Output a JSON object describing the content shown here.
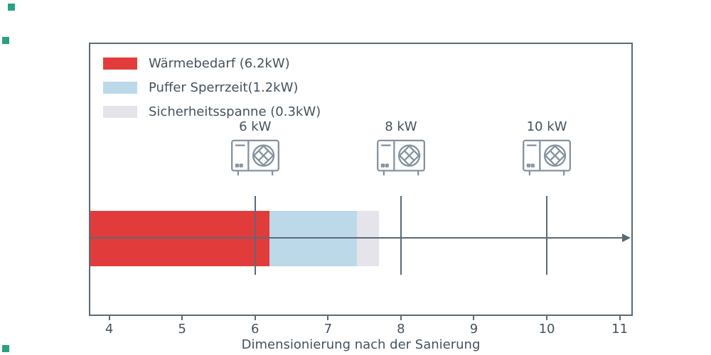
{
  "figure": {
    "background": "#ffffff",
    "frame_color": "#5b6a76",
    "text_color": "#44525e",
    "icon_color": "#8593a0",
    "handle_color": "#2aa184"
  },
  "legend": {
    "items": [
      {
        "label": "Wärmebedarf (6.2kW)",
        "color": "#e23b3b"
      },
      {
        "label": "Puffer Sperrzeit(1.2kW)",
        "color": "#bcd9ea"
      },
      {
        "label": "Sicherheitsspanne (0.3kW)",
        "color": "#e4e4ea"
      }
    ]
  },
  "chart_data": {
    "type": "bar",
    "orientation": "horizontal",
    "title": "",
    "xlabel": "Dimensionierung nach der Sanierung",
    "x_ticks": [
      4,
      5,
      6,
      7,
      8,
      9,
      10,
      11
    ],
    "xlim": [
      3.74,
      11.16
    ],
    "grid": false,
    "legend_position": "upper left",
    "bar": {
      "start": 3.74,
      "segments": [
        {
          "name": "Wärmebedarf",
          "value_kw": 6.2,
          "end": 6.2,
          "color": "#e23b3b"
        },
        {
          "name": "Puffer Sperrzeit",
          "value_kw": 1.2,
          "end": 7.4,
          "color": "#bcd9ea"
        },
        {
          "name": "Sicherheitsspanne",
          "value_kw": 0.3,
          "end": 7.7,
          "color": "#e4e4ea"
        }
      ]
    },
    "markers": [
      {
        "label": "6 kW",
        "x": 6
      },
      {
        "label": "8 kW",
        "x": 8
      },
      {
        "label": "10 kW",
        "x": 10
      }
    ]
  }
}
